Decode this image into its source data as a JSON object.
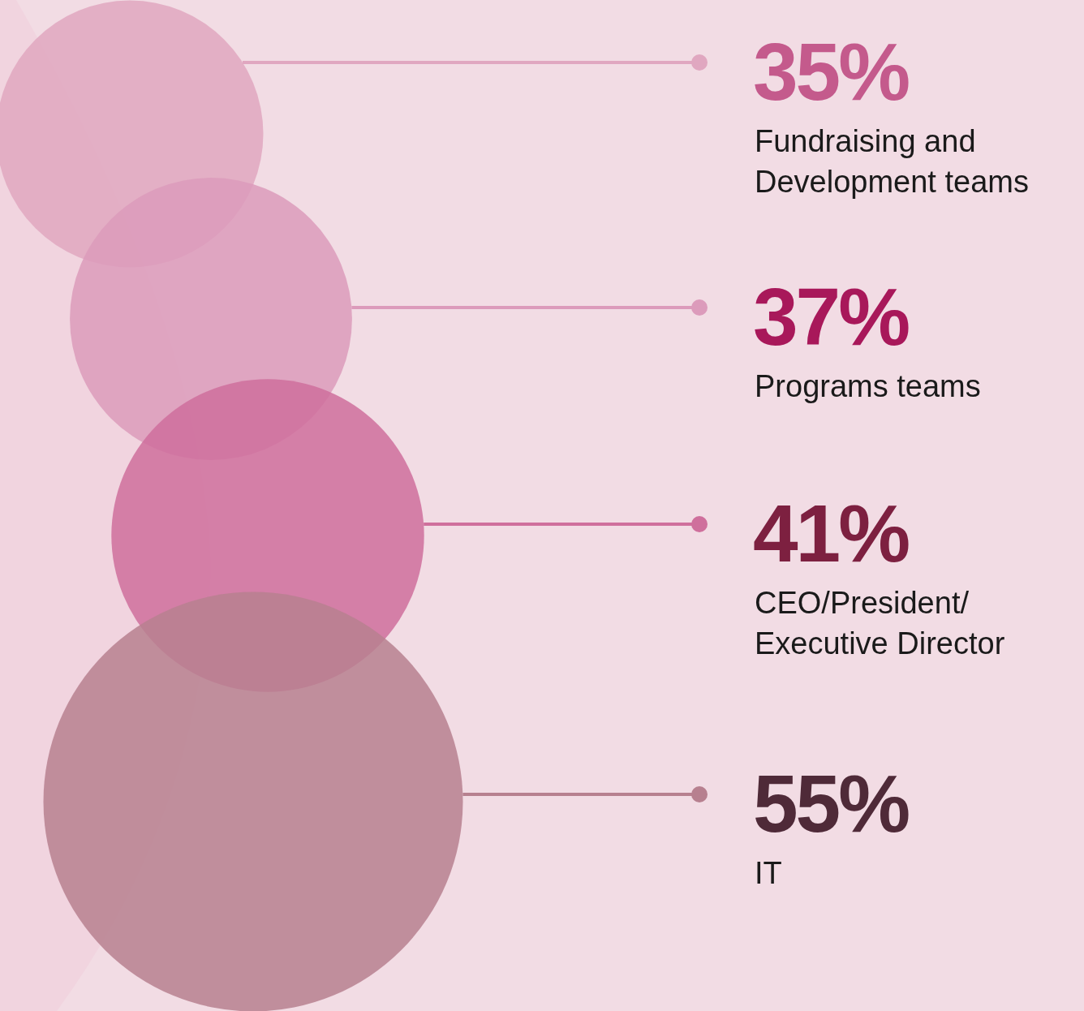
{
  "chart_data": {
    "type": "other",
    "categories": [
      "Fundraising and Development teams",
      "Programs teams",
      "CEO/President/Executive Director",
      "IT"
    ],
    "values": [
      35,
      37,
      41,
      55
    ],
    "colors": [
      "#e0a7c0",
      "#dc9bbb",
      "#cf6f9c",
      "#b7808f"
    ],
    "value_labels": [
      "35%",
      "37%",
      "41%",
      "55%"
    ]
  }
}
